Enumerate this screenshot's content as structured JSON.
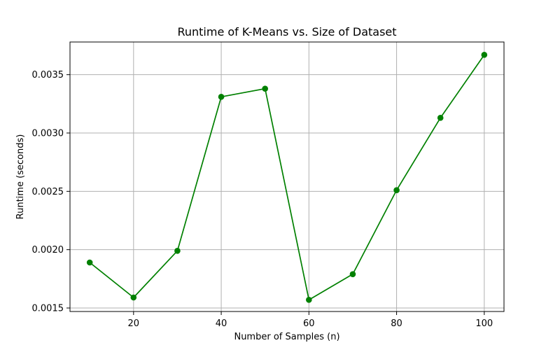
{
  "chart_data": {
    "type": "line",
    "title": "Runtime of K-Means vs. Size of Dataset",
    "xlabel": "Number of Samples (n)",
    "ylabel": "Runtime (seconds)",
    "xlim": [
      5.5,
      104.5
    ],
    "ylim": [
      0.00147,
      0.00378
    ],
    "grid": true,
    "x_ticks": [
      20,
      40,
      60,
      80,
      100
    ],
    "x_tick_labels": [
      "20",
      "40",
      "60",
      "80",
      "100"
    ],
    "y_ticks": [
      0.0015,
      0.002,
      0.0025,
      0.003,
      0.0035
    ],
    "y_tick_labels": [
      "0.0015",
      "0.0020",
      "0.0025",
      "0.0030",
      "0.0035"
    ],
    "series": [
      {
        "x": [
          10,
          20,
          30,
          40,
          50,
          60,
          70,
          80,
          90,
          100
        ],
        "y": [
          0.00189,
          0.00159,
          0.00199,
          0.00331,
          0.00338,
          0.00157,
          0.00179,
          0.00251,
          0.00313,
          0.00367
        ],
        "color": "#008000",
        "marker": "circle"
      }
    ],
    "colors": {
      "line": "#008000",
      "grid": "#b0b0b0",
      "axis": "#000000"
    }
  }
}
